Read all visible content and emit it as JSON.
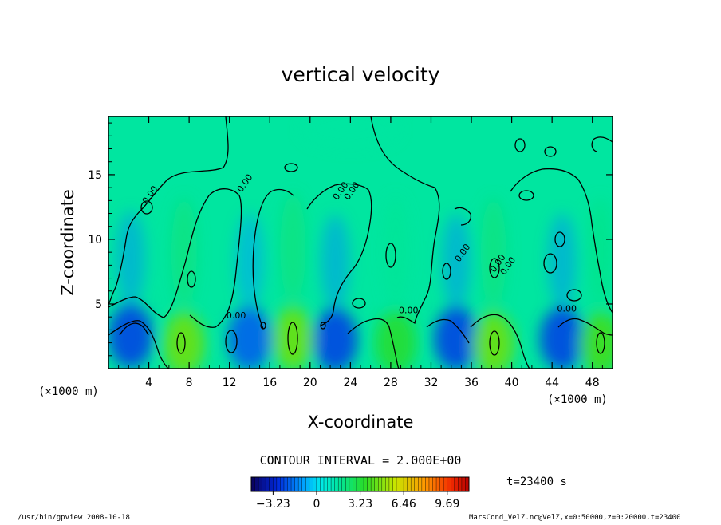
{
  "chart_data": {
    "type": "heatmap",
    "subtype": "contour",
    "title": "vertical velocity",
    "xlabel": "X-coordinate",
    "ylabel": "Z-coordinate",
    "x_unit_left": "(×1000 m)",
    "x_unit_right": "(×1000 m)",
    "xlim": [
      0,
      50
    ],
    "ylim": [
      0,
      19.5
    ],
    "x_ticks": [
      "4",
      "8",
      "12",
      "16",
      "20",
      "24",
      "28",
      "32",
      "36",
      "40",
      "44",
      "48"
    ],
    "y_ticks": [
      "5",
      "10",
      "15"
    ],
    "contour_interval_text": "CONTOUR INTERVAL = 2.000E+00",
    "contour_labels": [
      "0.00",
      "0.00",
      "0.00",
      "0.00",
      "0.00",
      "0.00",
      "0.00",
      "0.00",
      "0.00",
      "0.00"
    ],
    "time_label": "t=23400 s",
    "colorbar": {
      "range": [
        -4.85,
        11.3
      ],
      "tick_labels": [
        "-3.23",
        "0",
        "3.23",
        "6.46",
        "9.69"
      ],
      "tick_values": [
        -3.23,
        0,
        3.23,
        6.46,
        9.69
      ]
    },
    "updrafts": [
      {
        "x": 7.5,
        "z": 1.9,
        "max": 8
      },
      {
        "x": 18.3,
        "z": 2.3,
        "max": 8
      },
      {
        "x": 28.5,
        "z": 2.0,
        "max": 6
      },
      {
        "x": 38.2,
        "z": 1.9,
        "max": 8
      },
      {
        "x": 48.8,
        "z": 1.9,
        "max": 7
      }
    ],
    "downdrafts": [
      {
        "x": 2.2,
        "z": 2.5,
        "min": -2.5
      },
      {
        "x": 14.0,
        "z": 2.3,
        "min": -2.0
      },
      {
        "x": 22.5,
        "z": 2.2,
        "min": -2.5
      },
      {
        "x": 34.5,
        "z": 2.3,
        "min": -2.5
      },
      {
        "x": 45.0,
        "z": 2.3,
        "min": -2.5
      }
    ]
  },
  "footer": {
    "program": "/usr/bin/gpview  2008-10-18",
    "source": "MarsCond_VelZ.nc@VelZ,x=0:50000,z=0:20000,t=23400"
  }
}
